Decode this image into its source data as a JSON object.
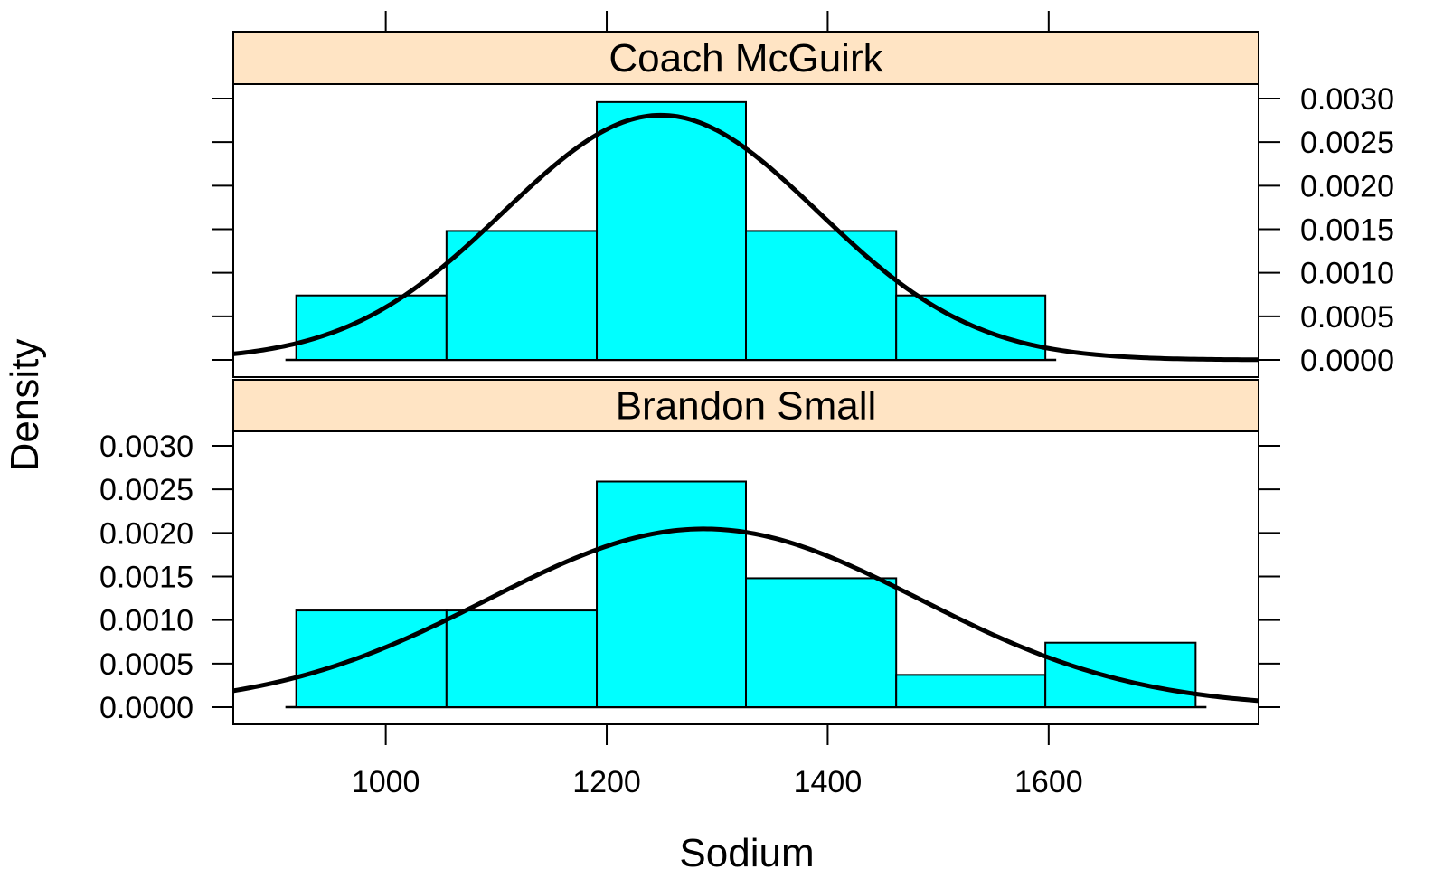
{
  "chart_data": {
    "type": "histogram",
    "xlabel": "Sodium",
    "ylabel": "Density",
    "xlim": [
      862,
      1790
    ],
    "ylim": [
      0,
      0.0031
    ],
    "x_ticks": [
      "1000",
      "1200",
      "1400",
      "1600"
    ],
    "x_tick_values": [
      1000,
      1200,
      1400,
      1600
    ],
    "y_ticks": [
      "0.0000",
      "0.0005",
      "0.0010",
      "0.0015",
      "0.0020",
      "0.0025",
      "0.0030"
    ],
    "y_tick_values": [
      0,
      0.0005,
      0.001,
      0.0015,
      0.002,
      0.0025,
      0.003
    ],
    "strip_color": "#ffe4c4",
    "bar_color": "#00ffff",
    "curve_color": "#000000",
    "panels": [
      {
        "name": "Coach McGuirk",
        "bins": [
          {
            "from": 919,
            "to": 1055,
            "density": 0.00074
          },
          {
            "from": 1055,
            "to": 1191,
            "density": 0.00148
          },
          {
            "from": 1191,
            "to": 1326,
            "density": 0.00296
          },
          {
            "from": 1326,
            "to": 1462,
            "density": 0.00148
          },
          {
            "from": 1462,
            "to": 1597,
            "density": 0.00074
          }
        ],
        "normal_curve": {
          "mean": 1249,
          "sd": 142
        }
      },
      {
        "name": "Brandon Small",
        "bins": [
          {
            "from": 919,
            "to": 1055,
            "density": 0.00111
          },
          {
            "from": 1055,
            "to": 1191,
            "density": 0.00111
          },
          {
            "from": 1191,
            "to": 1326,
            "density": 0.00259
          },
          {
            "from": 1326,
            "to": 1462,
            "density": 0.00148
          },
          {
            "from": 1462,
            "to": 1597,
            "density": 0.00037
          },
          {
            "from": 1597,
            "to": 1733,
            "density": 0.00074
          }
        ],
        "normal_curve": {
          "mean": 1288,
          "sd": 195
        }
      }
    ]
  }
}
